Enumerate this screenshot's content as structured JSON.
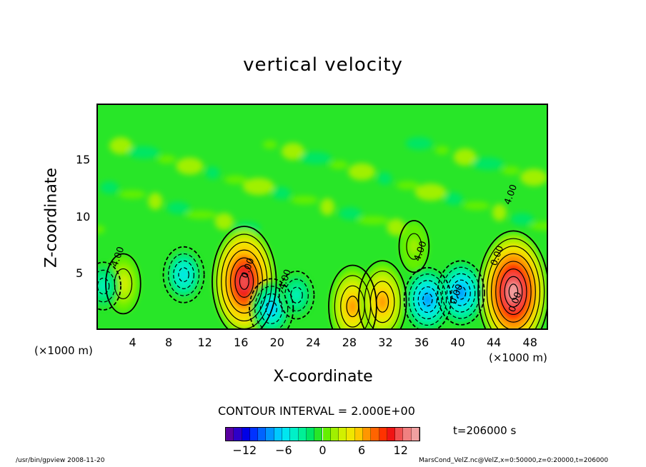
{
  "chart_data": {
    "type": "heatmap",
    "title": "vertical velocity",
    "xlabel": "X-coordinate",
    "ylabel": "Z-coordinate",
    "x_unit_left": "(×1000 m)",
    "x_unit_right": "(×1000 m)",
    "x_ticks": [
      "4",
      "8",
      "12",
      "16",
      "20",
      "24",
      "28",
      "32",
      "36",
      "40",
      "44",
      "48"
    ],
    "x_tick_values": [
      4,
      8,
      12,
      16,
      20,
      24,
      28,
      32,
      36,
      40,
      44,
      48
    ],
    "y_ticks": [
      "5",
      "10",
      "15"
    ],
    "y_tick_values": [
      5,
      10,
      15
    ],
    "xlim": [
      0,
      50
    ],
    "ylim": [
      0,
      20
    ],
    "contour_interval": "CONTOUR INTERVAL = 2.000E+00",
    "contour_labels": [
      "0.00",
      "0.00",
      "0.00",
      "0.00",
      "4.00",
      "4.00",
      "4.00",
      "4.00"
    ],
    "colorbar": {
      "range": [
        -15,
        15
      ],
      "ticks": [
        "−12",
        "−6",
        "0",
        "6",
        "12"
      ],
      "tick_values": [
        -12,
        -6,
        0,
        6,
        12
      ],
      "colors": [
        "#5a00a0",
        "#2d00c8",
        "#0000e6",
        "#0032ff",
        "#0064ff",
        "#0096ff",
        "#00c8ff",
        "#00e6f0",
        "#00f0c8",
        "#00f096",
        "#00e664",
        "#28e628",
        "#64f000",
        "#a0f000",
        "#d2f000",
        "#f0e600",
        "#ffc800",
        "#ff9600",
        "#ff6400",
        "#ff3200",
        "#f01414",
        "#f05050",
        "#f08080",
        "#f0a0a0"
      ]
    },
    "features": [
      {
        "kind": "updraft",
        "x": 16.2,
        "z": 4.4,
        "value": 12
      },
      {
        "kind": "updraft",
        "x": 46.0,
        "z": 3.5,
        "value": 14
      },
      {
        "kind": "updraft",
        "x": 28.2,
        "z": 2.2,
        "value": 7
      },
      {
        "kind": "updraft",
        "x": 31.5,
        "z": 2.6,
        "value": 7
      },
      {
        "kind": "updraft",
        "x": 2.8,
        "z": 4.2,
        "value": 3
      },
      {
        "kind": "updraft",
        "x": 35.0,
        "z": 7.5,
        "value": 1.5
      },
      {
        "kind": "downdraft",
        "x": 9.5,
        "z": 5.0,
        "value": -6
      },
      {
        "kind": "downdraft",
        "x": 19.2,
        "z": 2.0,
        "value": -7
      },
      {
        "kind": "downdraft",
        "x": 36.5,
        "z": 2.8,
        "value": -8
      },
      {
        "kind": "downdraft",
        "x": 40.2,
        "z": 3.4,
        "value": -8
      },
      {
        "kind": "downdraft",
        "x": 22.0,
        "z": 3.2,
        "value": -4
      },
      {
        "kind": "downdraft",
        "x": 0.6,
        "z": 4.0,
        "value": -4
      }
    ],
    "time": "t=206000 s"
  },
  "footer": {
    "left": "/usr/bin/gpview   2008-11-20",
    "right": "MarsCond_VelZ.nc@VelZ,x=0:50000,z=0:20000,t=206000"
  }
}
